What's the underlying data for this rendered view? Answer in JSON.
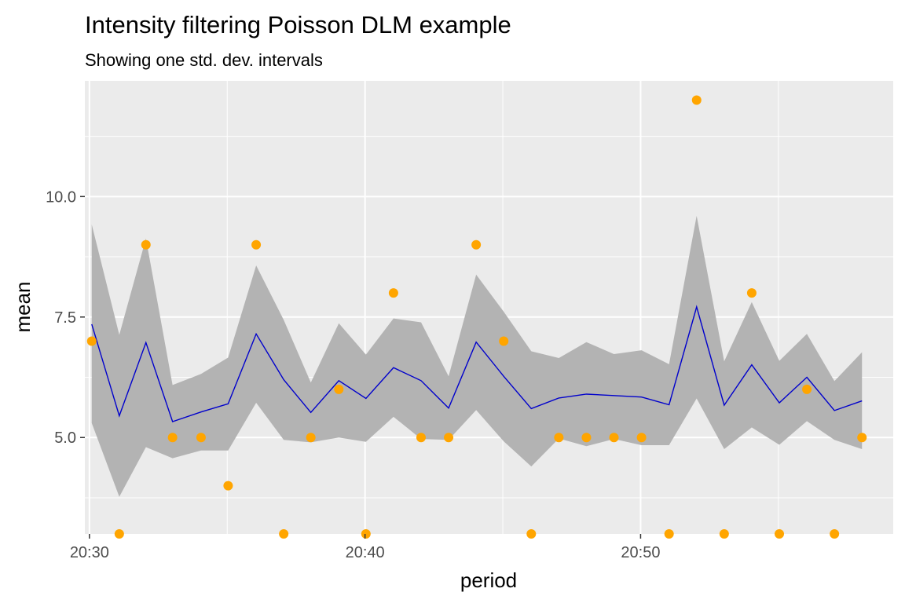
{
  "chart_data": {
    "type": "line",
    "title": "Intensity filtering Poisson DLM example",
    "subtitle": "Showing one std. dev. intervals",
    "xlabel": "period",
    "ylabel": "mean",
    "x_ticks": [
      {
        "label": "20:30",
        "minute": 0
      },
      {
        "label": "20:40",
        "minute": 10
      },
      {
        "label": "20:50",
        "minute": 20
      }
    ],
    "y_ticks": [
      {
        "label": "5.0",
        "value": 5.0
      },
      {
        "label": "7.5",
        "value": 7.5
      },
      {
        "label": "10.0",
        "value": 10.0
      }
    ],
    "xlim": [
      "20:29:50",
      "20:59:10"
    ],
    "ylim": [
      3.0,
      12.4
    ],
    "grid": true,
    "band_color": "#b3b3b3",
    "line_color": "#0000cc",
    "point_color": "#ffa500",
    "panel_color": "#ebebeb",
    "x": [
      "20:30:05",
      "20:31:05",
      "20:32:03",
      "20:33:01",
      "20:34:03",
      "20:35:02",
      "20:36:03",
      "20:37:03",
      "20:38:02",
      "20:39:03",
      "20:40:02",
      "20:41:02",
      "20:42:02",
      "20:43:02",
      "20:44:02",
      "20:45:02",
      "20:46:02",
      "20:47:02",
      "20:48:02",
      "20:49:02",
      "20:50:02",
      "20:51:02",
      "20:52:02",
      "20:53:02",
      "20:54:02",
      "20:55:02",
      "20:56:02",
      "20:57:02",
      "20:58:02"
    ],
    "series": [
      {
        "type": "line",
        "values": [
          7.35,
          5.45,
          6.97,
          5.33,
          5.53,
          5.7,
          7.15,
          6.2,
          5.52,
          6.18,
          5.81,
          6.45,
          6.18,
          5.61,
          6.98,
          6.27,
          5.6,
          5.82,
          5.9,
          5.87,
          5.84,
          5.68,
          7.71,
          5.67,
          6.51,
          5.72,
          6.25,
          5.56,
          5.76
        ]
      },
      {
        "type": "ribbon",
        "lower": [
          5.3,
          3.77,
          4.8,
          4.57,
          4.73,
          4.73,
          5.72,
          4.95,
          4.9,
          5.0,
          4.91,
          5.43,
          4.97,
          4.95,
          5.57,
          4.92,
          4.4,
          4.98,
          4.82,
          4.97,
          4.84,
          4.84,
          5.81,
          4.76,
          5.21,
          4.85,
          5.34,
          4.95,
          4.76
        ],
        "upper": [
          9.42,
          7.13,
          9.13,
          6.09,
          6.32,
          6.66,
          8.57,
          7.44,
          6.14,
          7.37,
          6.72,
          7.47,
          7.39,
          6.27,
          8.38,
          7.61,
          6.79,
          6.65,
          6.98,
          6.73,
          6.81,
          6.52,
          9.6,
          6.58,
          7.81,
          6.59,
          7.15,
          6.17,
          6.77
        ]
      },
      {
        "type": "points",
        "values": [
          7,
          3,
          9,
          5,
          5,
          4,
          9,
          3,
          5,
          6,
          3,
          8,
          5,
          5,
          9,
          7,
          3,
          5,
          5,
          5,
          5,
          3,
          12,
          3,
          8,
          3,
          6,
          3,
          5
        ]
      }
    ]
  }
}
